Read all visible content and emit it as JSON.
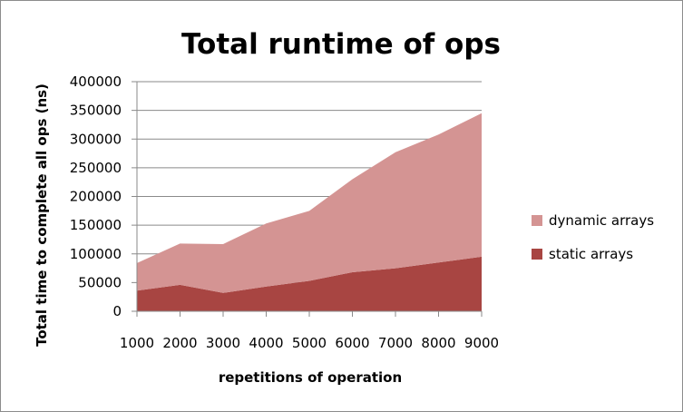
{
  "chart_data": {
    "type": "area",
    "stacked": true,
    "title": "Total runtime of ops",
    "xlabel": "repetitions of operation",
    "ylabel": "Total time to complete all ops (ns)",
    "categories": [
      "1000",
      "2000",
      "3000",
      "4000",
      "5000",
      "6000",
      "7000",
      "8000",
      "9000"
    ],
    "ylim": [
      0,
      400000
    ],
    "yticks": [
      "0",
      "50000",
      "100000",
      "150000",
      "200000",
      "250000",
      "300000",
      "350000",
      "400000"
    ],
    "grid": "horizontal",
    "legend_position": "right",
    "series": [
      {
        "name": "static arrays",
        "color": "#a84542",
        "values": [
          36000,
          46000,
          32000,
          43000,
          53000,
          68000,
          75000,
          85000,
          95000
        ]
      },
      {
        "name": "dynamic arrays",
        "color": "#d49493",
        "values": [
          48000,
          72000,
          85000,
          110000,
          122000,
          162000,
          202000,
          223000,
          250000
        ]
      }
    ]
  }
}
